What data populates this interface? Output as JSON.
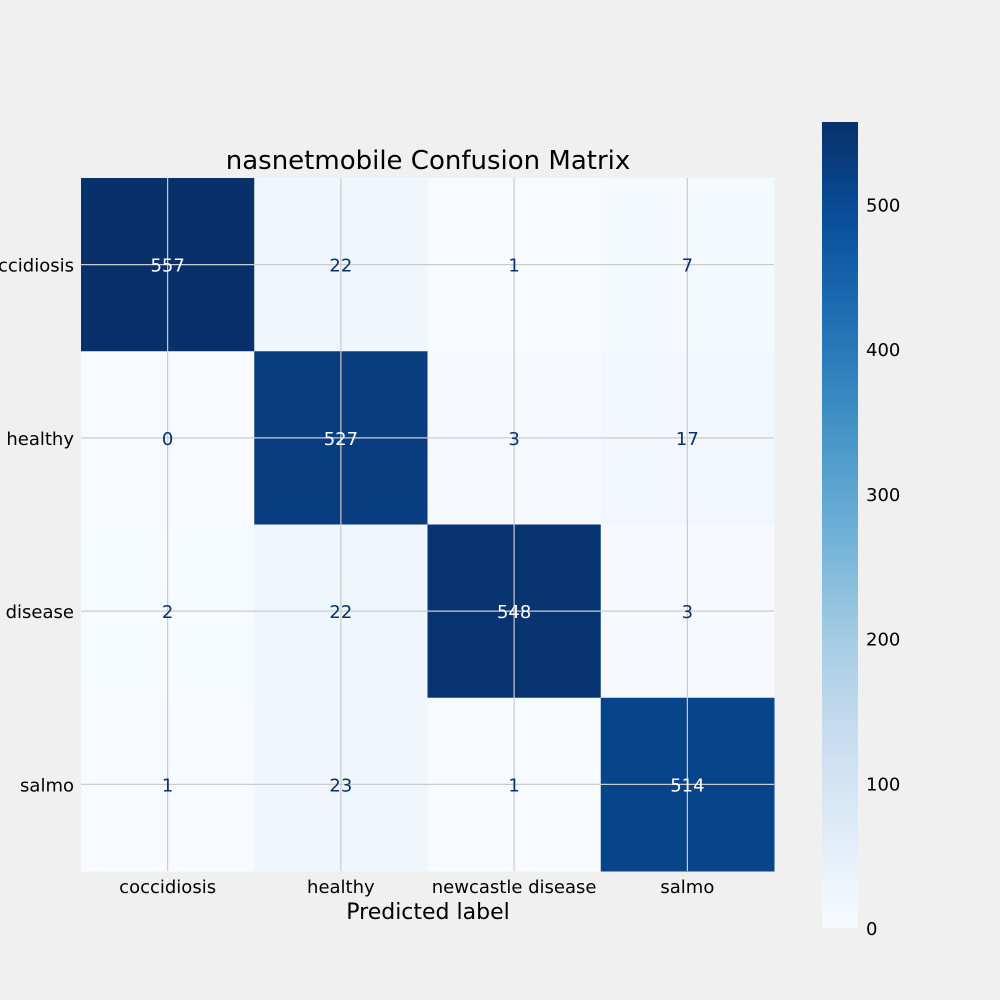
{
  "chart_data": {
    "type": "heatmap",
    "title": "nasnetmobile Confusion Matrix",
    "xlabel": "Predicted label",
    "ylabel": "",
    "x_categories": [
      "coccidiosis",
      "healthy",
      "newcastle disease",
      "salmo"
    ],
    "y_categories": [
      "coccidiosis",
      "healthy",
      "newcastle disease",
      "salmo"
    ],
    "matrix": [
      [
        557,
        22,
        1,
        7
      ],
      [
        0,
        527,
        3,
        17
      ],
      [
        2,
        22,
        548,
        3
      ],
      [
        1,
        23,
        1,
        514
      ]
    ],
    "colormap": "Blues",
    "vmin": 0,
    "vmax": 557,
    "colorbar_ticks": [
      0,
      100,
      200,
      300,
      400,
      500
    ],
    "grid": true,
    "colors": {
      "background": "#f0f0f0",
      "grid": "#cbcbcb",
      "text_dark": "#08306b",
      "text_light": "#ffffff",
      "label": "#000000"
    }
  }
}
